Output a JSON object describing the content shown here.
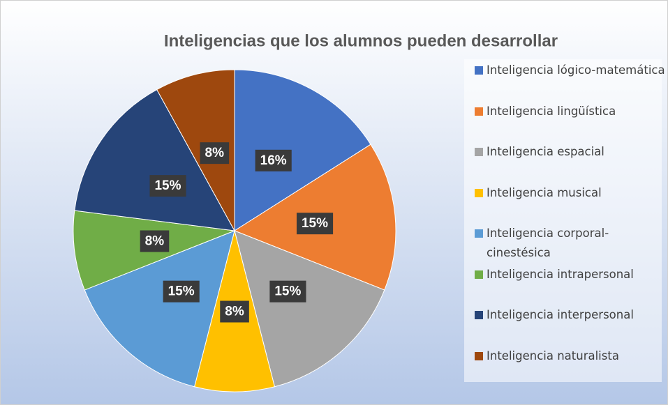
{
  "chart_data": {
    "type": "pie",
    "title": "Inteligencias que los alumnos pueden desarrollar",
    "categories": [
      "Inteligencia lógico-matemática",
      "Inteligencia lingüística",
      "Inteligencia espacial",
      "Inteligencia musical",
      "Inteligencia corporal-cinestésica",
      "Inteligencia intrapersonal",
      "Inteligencia interpersonal",
      "Inteligencia naturalista"
    ],
    "values": [
      16,
      15,
      15,
      8,
      15,
      8,
      15,
      8
    ],
    "value_labels": [
      "16%",
      "15%",
      "15%",
      "8%",
      "15%",
      "8%",
      "15%",
      "8%"
    ],
    "colors": [
      "#4472c4",
      "#ed7d31",
      "#a5a5a5",
      "#ffc000",
      "#5b9bd5",
      "#70ad47",
      "#264478",
      "#9e480e"
    ],
    "legend": "right"
  }
}
